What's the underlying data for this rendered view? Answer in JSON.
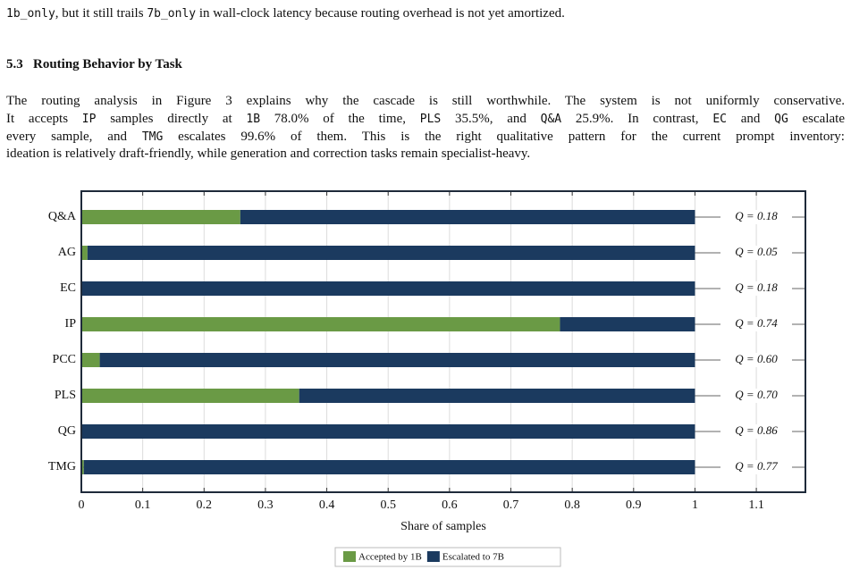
{
  "intro_line": [
    {
      "text": "1b_only",
      "code": true
    },
    {
      "text": ", but it still trails "
    },
    {
      "text": "7b_only",
      "code": true
    },
    {
      "text": " in wall-clock latency because routing overhead is not yet amortized."
    }
  ],
  "section": {
    "number": "5.3",
    "title": "Routing Behavior by Task"
  },
  "paragraph": [
    [
      {
        "text": "The routing analysis in Figure 3 explains why the cascade is still worthwhile. The system is not uniformly conservative."
      }
    ],
    [
      {
        "text": "It accepts "
      },
      {
        "text": "IP",
        "code": true
      },
      {
        "text": " samples directly at "
      },
      {
        "text": "1B",
        "code": true
      },
      {
        "text": " 78.0% of the time, "
      },
      {
        "text": "PLS",
        "code": true
      },
      {
        "text": " 35.5%, and "
      },
      {
        "text": "Q&A",
        "code": true
      },
      {
        "text": " 25.9%. In contrast, "
      },
      {
        "text": "EC",
        "code": true
      },
      {
        "text": " and "
      },
      {
        "text": "QG",
        "code": true
      },
      {
        "text": " escalate"
      }
    ],
    [
      {
        "text": "every sample, and "
      },
      {
        "text": "TMG",
        "code": true
      },
      {
        "text": " escalates 99.6% of them. This is the right qualitative pattern for the current prompt inventory:"
      }
    ],
    [
      {
        "text": "ideation is relatively draft-friendly, while generation and correction tasks remain specialist-heavy."
      }
    ]
  ],
  "chart_data": {
    "type": "stacked-barh",
    "categories": [
      "Q&A",
      "AG",
      "EC",
      "IP",
      "PCC",
      "PLS",
      "QG",
      "TMG"
    ],
    "series": [
      {
        "name": "Accepted by 1B",
        "color": "#6a9a45",
        "values": [
          0.259,
          0.01,
          0,
          0.78,
          0.03,
          0.355,
          0,
          0.004
        ]
      },
      {
        "name": "Escalated to 7B",
        "color": "#1b3a5f",
        "values": [
          0.741,
          0.99,
          1,
          0.22,
          0.97,
          0.645,
          1,
          0.996
        ]
      }
    ],
    "annotations": [
      "Q = 0.18",
      "Q = 0.05",
      "Q = 0.18",
      "Q = 0.74",
      "Q = 0.60",
      "Q = 0.70",
      "Q = 0.86",
      "Q = 0.77"
    ],
    "xlabel": "Share of samples",
    "xlim": [
      0,
      1.18
    ],
    "xticks": [
      0,
      0.1,
      0.2,
      0.3,
      0.4,
      0.5,
      0.6,
      0.7,
      0.8,
      0.9,
      1,
      1.1
    ],
    "grid": true,
    "legend": "bottom"
  }
}
